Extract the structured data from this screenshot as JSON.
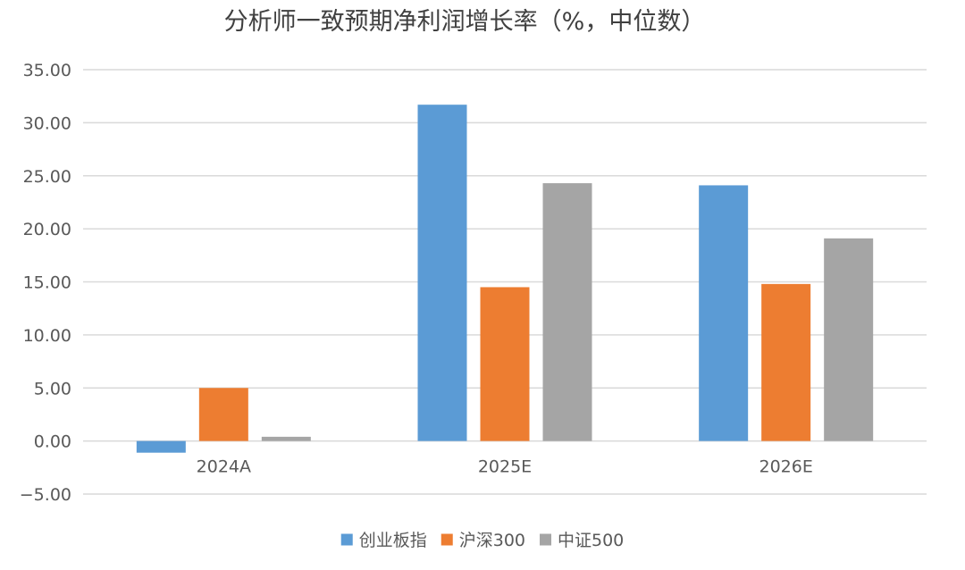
{
  "chart_data": {
    "type": "bar",
    "title": "分析师一致预期净利润增长率（%，中位数）",
    "xlabel": "",
    "ylabel": "",
    "categories": [
      "2024A",
      "2025E",
      "2026E"
    ],
    "series": [
      {
        "name": "创业板指",
        "color": "#5B9BD5",
        "values": [
          -1.1,
          31.7,
          24.1
        ]
      },
      {
        "name": "沪深300",
        "color": "#ED7D31",
        "values": [
          5.0,
          14.5,
          14.8
        ]
      },
      {
        "name": "中证500",
        "color": "#A5A5A5",
        "values": [
          0.4,
          24.3,
          19.1
        ]
      }
    ],
    "ylim": [
      -5,
      35
    ],
    "yticks": [
      35,
      30,
      25,
      20,
      15,
      10,
      5,
      0,
      -5
    ],
    "ytick_labels": [
      "35.00",
      "30.00",
      "25.00",
      "20.00",
      "15.00",
      "10.00",
      "5.00",
      "0.00",
      "−5.00"
    ],
    "grid": true,
    "gridline_color": "#D9D9D9",
    "legend_position": "bottom"
  }
}
